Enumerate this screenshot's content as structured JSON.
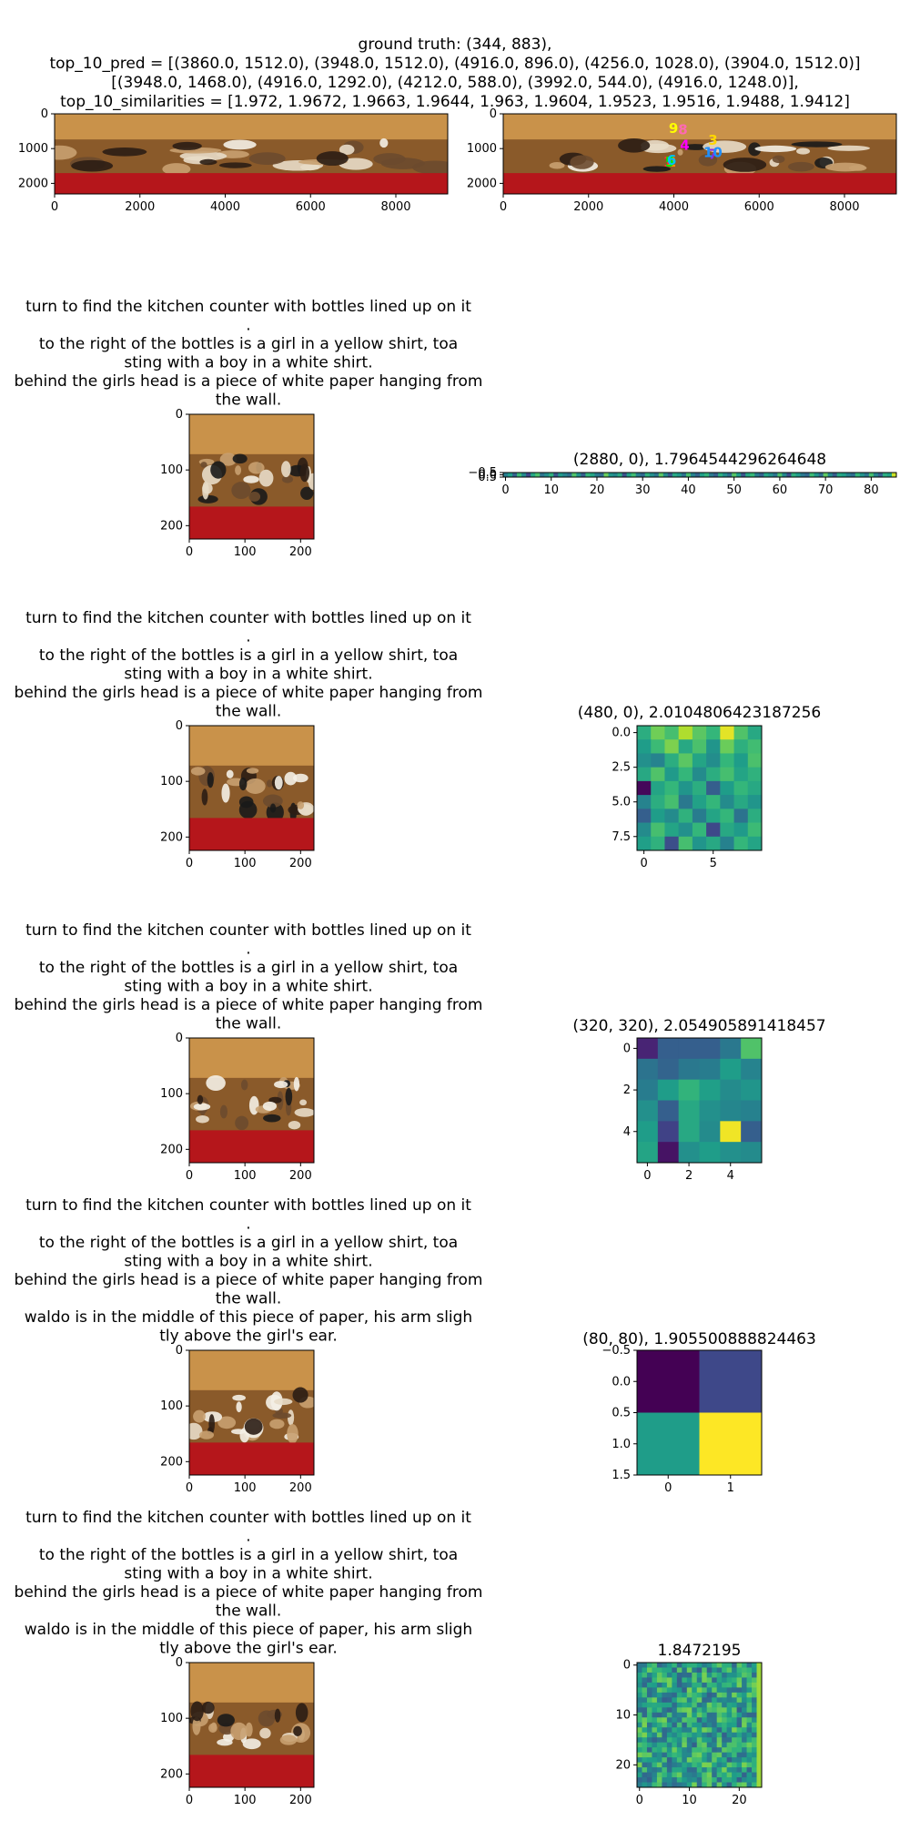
{
  "header": {
    "lines": [
      "ground truth: (344, 883),",
      "top_10_pred = [(3860.0, 1512.0), (3948.0, 1512.0), (4916.0, 896.0), (4256.0, 1028.0), (3904.0, 1512.0)]",
      "[(3948.0, 1468.0), (4916.0, 1292.0), (4212.0, 588.0), (3992.0, 544.0), (4916.0, 1248.0)],",
      "top_10_similarities = [1.972, 1.9672, 1.9663, 1.9644, 1.963, 1.9604, 1.9523, 1.9516, 1.9488, 1.9412]"
    ]
  },
  "colors": {
    "viridis": [
      "#440154",
      "#482878",
      "#3e4989",
      "#31688e",
      "#26828e",
      "#1f9e89",
      "#35b779",
      "#6ece58",
      "#b5de2b",
      "#fde725"
    ],
    "floor": "#b5161b",
    "ceiling": "#c9924a",
    "pred_colors": [
      "#ff3030",
      "#ff8c00",
      "#ffd700",
      "#ff00ff",
      "#00ee00",
      "#00bfff",
      "#8a2be2",
      "#ff69b4",
      "#ffff00",
      "#1e90ff"
    ]
  },
  "panorama": {
    "yticks": [
      "0",
      "1000",
      "2000"
    ],
    "xticks": [
      "0",
      "2000",
      "4000",
      "6000",
      "8000"
    ],
    "markers": [
      {
        "label": "1",
        "x": 3860.0,
        "y": 1512.0
      },
      {
        "label": "2",
        "x": 3948.0,
        "y": 1512.0
      },
      {
        "label": "3",
        "x": 4916.0,
        "y": 896.0
      },
      {
        "label": "4",
        "x": 4256.0,
        "y": 1028.0
      },
      {
        "label": "5",
        "x": 3904.0,
        "y": 1512.0
      },
      {
        "label": "6",
        "x": 3948.0,
        "y": 1468.0
      },
      {
        "label": "7",
        "x": 4916.0,
        "y": 1292.0
      },
      {
        "label": "8",
        "x": 4212.0,
        "y": 588.0
      },
      {
        "label": "9",
        "x": 3992.0,
        "y": 544.0
      },
      {
        "label": "10",
        "x": 4916.0,
        "y": 1248.0
      }
    ]
  },
  "crop_ticks": {
    "y": [
      "0",
      "100",
      "200"
    ],
    "x": [
      "0",
      "100",
      "200"
    ]
  },
  "rows": [
    {
      "caption": [
        "turn to find the kitchen counter with bottles lined up on it",
        ".",
        "to the right of the bottles is a girl in a yellow shirt, toa",
        "sting with a boy in a white shirt.",
        "behind the girls head is a piece of white paper hanging from",
        "the wall."
      ],
      "heat_title": "(2880, 0), 1.7964544296264648"
    },
    {
      "caption": [
        "turn to find the kitchen counter with bottles lined up on it",
        ".",
        "to the right of the bottles is a girl in a yellow shirt, toa",
        "sting with a boy in a white shirt.",
        "behind the girls head is a piece of white paper hanging from",
        "the wall."
      ],
      "heat_title": "(480, 0), 2.0104806423187256"
    },
    {
      "caption": [
        "turn to find the kitchen counter with bottles lined up on it",
        ".",
        "to the right of the bottles is a girl in a yellow shirt, toa",
        "sting with a boy in a white shirt.",
        "behind the girls head is a piece of white paper hanging from",
        "the wall."
      ],
      "heat_title": "(320, 320), 2.054905891418457"
    },
    {
      "caption": [
        "turn to find the kitchen counter with bottles lined up on it",
        ".",
        "to the right of the bottles is a girl in a yellow shirt, toa",
        "sting with a boy in a white shirt.",
        "behind the girls head is a piece of white paper hanging from",
        "the wall.",
        "waldo is in the middle of this piece of paper, his arm sligh",
        "tly above the girl's ear."
      ],
      "heat_title": "(80, 80), 1.905500888824463"
    },
    {
      "caption": [
        "turn to find the kitchen counter with bottles lined up on it",
        ".",
        "to the right of the bottles is a girl in a yellow shirt, toa",
        "sting with a boy in a white shirt.",
        "behind the girls head is a piece of white paper hanging from",
        "the wall.",
        "waldo is in the middle of this piece of paper, his arm sligh",
        "tly above the girl's ear."
      ],
      "heat_title": "1.8472195"
    }
  ],
  "chart_data": [
    {
      "type": "heatmap",
      "title": "(2880, 0), 1.7964544296264648",
      "rows": 1,
      "cols": 86,
      "xticks": [
        "0",
        "10",
        "20",
        "30",
        "40",
        "50",
        "60",
        "70",
        "80"
      ],
      "yticks": [
        "−0.5",
        "0.0",
        "0.5"
      ],
      "values": [
        [
          0.42,
          0.55,
          0.31,
          0.68,
          0.47,
          0.22,
          0.59,
          0.71,
          0.38,
          0.49,
          0.63,
          0.27,
          0.54,
          0.45,
          0.36,
          0.72,
          0.51,
          0.29,
          0.66,
          0.58,
          0.41,
          0.34,
          0.77,
          0.52,
          0.46,
          0.61,
          0.25,
          0.57,
          0.69,
          0.43,
          0.33,
          0.64,
          0.5,
          0.39,
          0.74,
          0.48,
          0.28,
          0.6,
          0.53,
          0.37,
          0.7,
          0.44,
          0.32,
          0.56,
          0.65,
          0.4,
          0.3,
          0.62,
          0.49,
          0.35,
          0.73,
          0.55,
          0.26,
          0.59,
          0.67,
          0.42,
          0.31,
          0.58,
          0.5,
          0.38,
          0.71,
          0.46,
          0.24,
          0.63,
          0.54,
          0.4,
          0.33,
          0.68,
          0.52,
          0.36,
          0.75,
          0.47,
          0.29,
          0.6,
          0.56,
          0.43,
          0.35,
          0.66,
          0.51,
          0.39,
          0.7,
          0.45,
          0.3,
          0.62,
          0.57,
          0.92
        ]
      ]
    },
    {
      "type": "heatmap",
      "title": "(480, 0), 2.0104806423187256",
      "rows": 9,
      "cols": 9,
      "xticks": [
        "0",
        "5"
      ],
      "yticks": [
        "0.0",
        "2.5",
        "5.0",
        "7.5"
      ],
      "values": [
        [
          0.62,
          0.78,
          0.7,
          0.88,
          0.74,
          0.66,
          0.96,
          0.72,
          0.6
        ],
        [
          0.55,
          0.68,
          0.8,
          0.6,
          0.71,
          0.52,
          0.77,
          0.63,
          0.69
        ],
        [
          0.5,
          0.45,
          0.62,
          0.74,
          0.58,
          0.49,
          0.66,
          0.55,
          0.71
        ],
        [
          0.6,
          0.72,
          0.54,
          0.66,
          0.48,
          0.62,
          0.7,
          0.58,
          0.64
        ],
        [
          0.02,
          0.58,
          0.66,
          0.52,
          0.62,
          0.3,
          0.55,
          0.66,
          0.6
        ],
        [
          0.45,
          0.62,
          0.7,
          0.4,
          0.57,
          0.66,
          0.48,
          0.6,
          0.52
        ],
        [
          0.3,
          0.55,
          0.48,
          0.64,
          0.42,
          0.58,
          0.66,
          0.38,
          0.62
        ],
        [
          0.48,
          0.7,
          0.58,
          0.5,
          0.66,
          0.22,
          0.6,
          0.54,
          0.68
        ],
        [
          0.56,
          0.64,
          0.24,
          0.7,
          0.52,
          0.6,
          0.44,
          0.66,
          0.58
        ]
      ]
    },
    {
      "type": "heatmap",
      "title": "(320, 320), 2.054905891418457",
      "rows": 6,
      "cols": 6,
      "xticks": [
        "0",
        "2",
        "4"
      ],
      "yticks": [
        "0",
        "2",
        "4"
      ],
      "values": [
        [
          0.1,
          0.3,
          0.3,
          0.3,
          0.4,
          0.72
        ],
        [
          0.38,
          0.32,
          0.4,
          0.42,
          0.55,
          0.45
        ],
        [
          0.42,
          0.55,
          0.65,
          0.56,
          0.48,
          0.52
        ],
        [
          0.5,
          0.3,
          0.6,
          0.5,
          0.46,
          0.44
        ],
        [
          0.55,
          0.2,
          0.6,
          0.48,
          0.98,
          0.3
        ],
        [
          0.58,
          0.05,
          0.5,
          0.55,
          0.5,
          0.48
        ]
      ]
    },
    {
      "type": "heatmap",
      "title": "(80, 80), 1.905500888824463",
      "rows": 2,
      "cols": 2,
      "xticks": [
        "0",
        "1"
      ],
      "yticks": [
        "−0.5",
        "0.0",
        "0.5",
        "1.0",
        "1.5"
      ],
      "values": [
        [
          0.0,
          0.22
        ],
        [
          0.55,
          1.0
        ]
      ]
    },
    {
      "type": "heatmap",
      "title": "1.8472195",
      "rows": 25,
      "cols": 25,
      "xticks": [
        "0",
        "10",
        "20"
      ],
      "yticks": [
        "0",
        "10",
        "20"
      ]
    }
  ]
}
